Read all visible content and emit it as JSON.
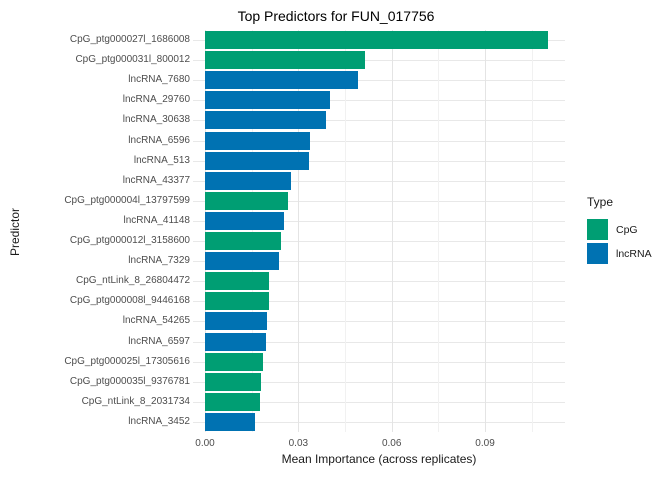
{
  "title": "Top Predictors for FUN_017756",
  "axes": {
    "y_title": "Predictor",
    "x_title": "Mean Importance (across replicates)",
    "x_ticks": [
      "0.00",
      "0.03",
      "0.06",
      "0.09"
    ]
  },
  "legend": {
    "title": "Type",
    "items": [
      {
        "label": "CpG",
        "color": "#009E73"
      },
      {
        "label": "lncRNA",
        "color": "#0072B2"
      }
    ]
  },
  "chart_data": {
    "type": "bar",
    "orientation": "horizontal",
    "title": "Top Predictors for FUN_017756",
    "xlabel": "Mean Importance (across replicates)",
    "ylabel": "Predictor",
    "xlim": [
      0,
      0.1157
    ],
    "x_major_ticks": [
      0,
      0.03,
      0.06,
      0.09
    ],
    "x_minor_gridlines": [
      0.015,
      0.045,
      0.075,
      0.105
    ],
    "grid": true,
    "legend_position": "right",
    "legend_title": "Type",
    "series_colors": {
      "CpG": "#009E73",
      "lncRNA": "#0072B2"
    },
    "bars": [
      {
        "label": "CpG_ptg000027l_1686008",
        "value": 0.1103,
        "type": "CpG"
      },
      {
        "label": "CpG_ptg000031l_800012",
        "value": 0.0514,
        "type": "CpG"
      },
      {
        "label": "lncRNA_7680",
        "value": 0.0493,
        "type": "lncRNA"
      },
      {
        "label": "lncRNA_29760",
        "value": 0.0403,
        "type": "lncRNA"
      },
      {
        "label": "lncRNA_30638",
        "value": 0.039,
        "type": "lncRNA"
      },
      {
        "label": "lncRNA_6596",
        "value": 0.0338,
        "type": "lncRNA"
      },
      {
        "label": "lncRNA_513",
        "value": 0.0334,
        "type": "lncRNA"
      },
      {
        "label": "lncRNA_43377",
        "value": 0.0276,
        "type": "lncRNA"
      },
      {
        "label": "CpG_ptg000004l_13797599",
        "value": 0.0266,
        "type": "CpG"
      },
      {
        "label": "lncRNA_41148",
        "value": 0.0253,
        "type": "lncRNA"
      },
      {
        "label": "CpG_ptg000012l_3158600",
        "value": 0.0244,
        "type": "CpG"
      },
      {
        "label": "lncRNA_7329",
        "value": 0.0238,
        "type": "lncRNA"
      },
      {
        "label": "CpG_ntLink_8_26804472",
        "value": 0.0206,
        "type": "CpG"
      },
      {
        "label": "CpG_ptg000008l_9446168",
        "value": 0.0205,
        "type": "CpG"
      },
      {
        "label": "lncRNA_54265",
        "value": 0.0199,
        "type": "lncRNA"
      },
      {
        "label": "lncRNA_6597",
        "value": 0.0195,
        "type": "lncRNA"
      },
      {
        "label": "CpG_ptg000025l_17305616",
        "value": 0.0187,
        "type": "CpG"
      },
      {
        "label": "CpG_ptg000035l_9376781",
        "value": 0.018,
        "type": "CpG"
      },
      {
        "label": "CpG_ntLink_8_2031734",
        "value": 0.0177,
        "type": "CpG"
      },
      {
        "label": "lncRNA_3452",
        "value": 0.0162,
        "type": "lncRNA"
      }
    ]
  }
}
